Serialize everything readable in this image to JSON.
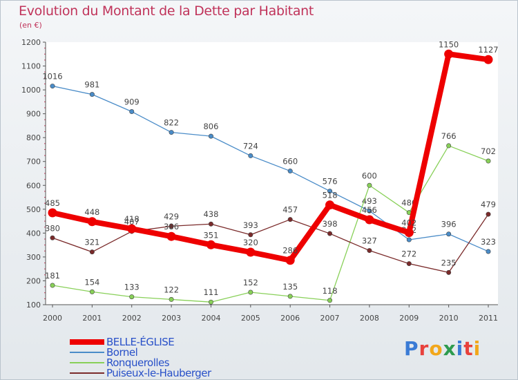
{
  "title": "Evolution du Montant de la Dette par Habitant",
  "unit": "(en €)",
  "logo": {
    "letters": [
      "P",
      "r",
      "o",
      "x",
      "i",
      "t",
      "i"
    ],
    "colors": [
      "#3a7bd5",
      "#e8413c",
      "#f2a71b",
      "#2d9b4e",
      "#3a7bd5",
      "#e8413c",
      "#f2a71b"
    ]
  },
  "chart_data": {
    "type": "line",
    "title": "Evolution du Montant de la Dette par Habitant",
    "ylabel": "(en €)",
    "xlabel": "",
    "categories": [
      "2000",
      "2001",
      "2002",
      "2003",
      "2004",
      "2005",
      "2006",
      "2007",
      "2008",
      "2009",
      "2010",
      "2011"
    ],
    "ylim": [
      100,
      1200
    ],
    "yticks": [
      100,
      200,
      300,
      400,
      500,
      600,
      700,
      800,
      900,
      1000,
      1100,
      1200
    ],
    "grid": false,
    "legend_position": "bottom-left",
    "series": [
      {
        "name": "BELLE-ÉGLISE",
        "color": "#ee0000",
        "values": [
          485,
          448,
          418,
          386,
          351,
          320,
          286,
          518,
          456,
          402,
          1150,
          1127
        ]
      },
      {
        "name": "Bornel",
        "color": "#4a8cc8",
        "values": [
          1016,
          981,
          909,
          822,
          806,
          724,
          660,
          576,
          493,
          372,
          396,
          323
        ]
      },
      {
        "name": "Ronquerolles",
        "color": "#88d058",
        "values": [
          181,
          154,
          133,
          122,
          111,
          152,
          135,
          118,
          600,
          486,
          766,
          702
        ]
      },
      {
        "name": "Puiseux-le-Hauberger",
        "color": "#7a2a2a",
        "values": [
          380,
          321,
          407,
          429,
          438,
          393,
          457,
          398,
          327,
          272,
          235,
          479
        ]
      }
    ]
  }
}
